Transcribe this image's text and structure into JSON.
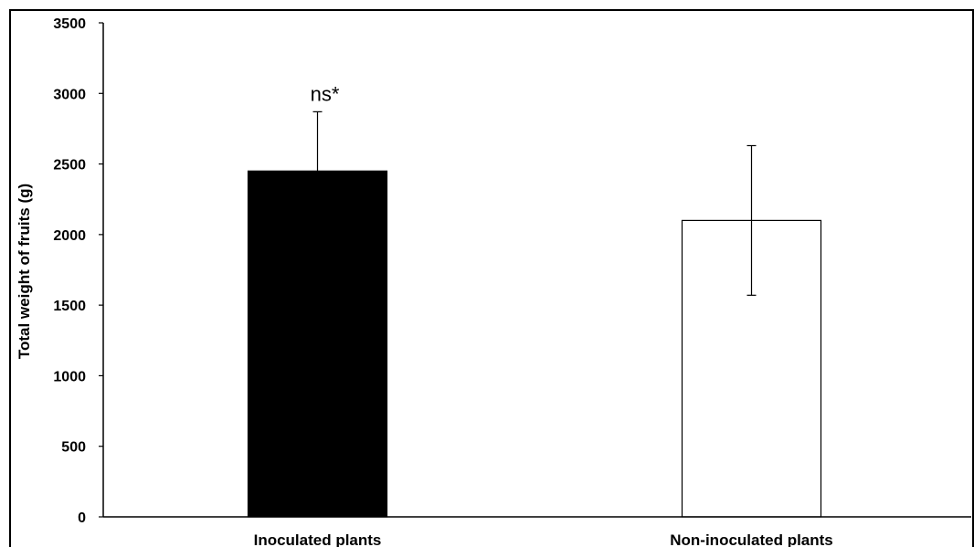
{
  "chart_data": {
    "type": "bar",
    "title": "",
    "xlabel": "",
    "ylabel": "Total weight  of fruits (g)",
    "categories": [
      "Inoculated plants",
      "Non-inoculated plants"
    ],
    "values": [
      2450,
      2100
    ],
    "errors": [
      420,
      530
    ],
    "bar_colors": [
      "#000000",
      "#ffffff"
    ],
    "ylim": [
      0,
      3500
    ],
    "yticks": [
      0,
      500,
      1000,
      1500,
      2000,
      2500,
      3000,
      3500
    ],
    "annotations": [
      {
        "category_index": 0,
        "text": "ns*"
      }
    ],
    "grid": false,
    "legend": "none"
  }
}
